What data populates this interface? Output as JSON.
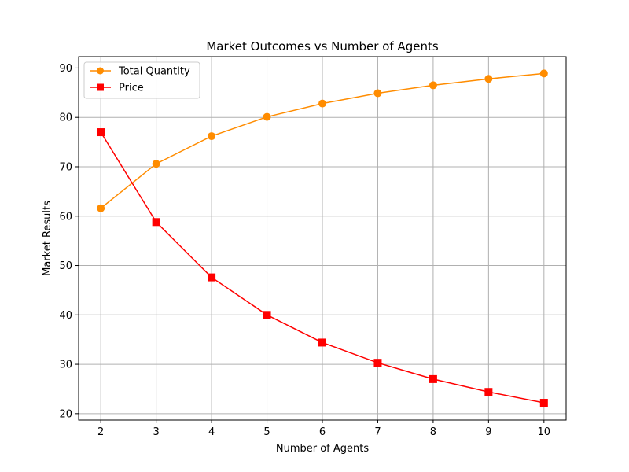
{
  "chart_data": {
    "type": "line",
    "title": "Market Outcomes vs Number of Agents",
    "xlabel": "Number of Agents",
    "ylabel": "Market Results",
    "x": [
      2,
      3,
      4,
      5,
      6,
      7,
      8,
      9,
      10
    ],
    "xticks": [
      "2",
      "3",
      "4",
      "5",
      "6",
      "7",
      "8",
      "9",
      "10"
    ],
    "yticks": [
      "20",
      "30",
      "40",
      "50",
      "60",
      "70",
      "80",
      "90"
    ],
    "xlim": [
      1.6,
      10.4
    ],
    "ylim": [
      18.7,
      92.3
    ],
    "grid": true,
    "legend_position": "upper-left",
    "series": [
      {
        "name": "Total Quantity",
        "color": "#ff8c00",
        "marker": "circle",
        "values": [
          61.6,
          70.6,
          76.2,
          80.1,
          82.8,
          84.9,
          86.5,
          87.8,
          88.9
        ]
      },
      {
        "name": "Price",
        "color": "#ff0000",
        "marker": "square",
        "values": [
          77.0,
          58.8,
          47.6,
          40.0,
          34.4,
          30.3,
          27.0,
          24.4,
          22.2
        ]
      }
    ]
  }
}
